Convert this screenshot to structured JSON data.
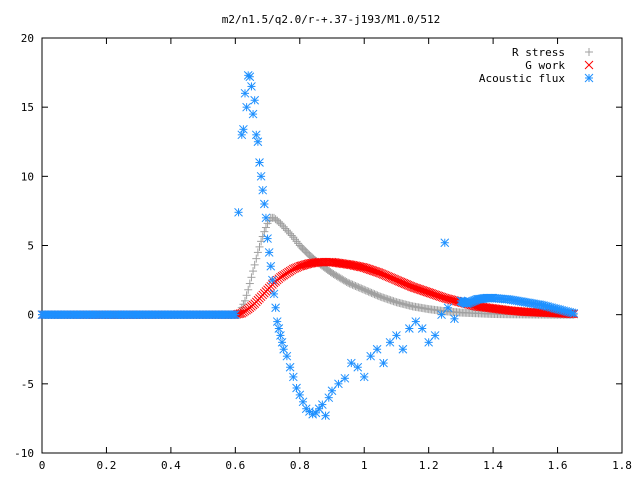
{
  "chart_data": {
    "type": "scatter",
    "title": "m2/n1.5/q2.0/r-+.37-j193/M1.0/512",
    "xlabel": "",
    "ylabel": "",
    "xlim": [
      0,
      1.8
    ],
    "ylim": [
      -10,
      20
    ],
    "x_ticks": [
      "0",
      "0.2",
      "0.4",
      "0.6",
      "0.8",
      "1",
      "1.2",
      "1.4",
      "1.6",
      "1.8"
    ],
    "y_ticks": [
      "-10",
      "-5",
      "0",
      "5",
      "10",
      "15",
      "20"
    ],
    "grid": false,
    "legend_position": "top-right",
    "series": [
      {
        "name": "R stress",
        "marker": "plus",
        "color": "#a0a0a0",
        "x": [
          0.0,
          0.1,
          0.2,
          0.3,
          0.4,
          0.5,
          0.6,
          0.61,
          0.62,
          0.63,
          0.64,
          0.65,
          0.66,
          0.67,
          0.68,
          0.69,
          0.7,
          0.71,
          0.72,
          0.73,
          0.74,
          0.76,
          0.78,
          0.8,
          0.83,
          0.86,
          0.9,
          0.95,
          1.0,
          1.05,
          1.1,
          1.15,
          1.2,
          1.25,
          1.3,
          1.35,
          1.4,
          1.45,
          1.5,
          1.55,
          1.6,
          1.65
        ],
        "y": [
          0,
          0,
          0,
          0,
          0,
          0,
          0,
          0.1,
          0.5,
          1.0,
          1.8,
          2.7,
          3.6,
          4.5,
          5.3,
          6.0,
          6.6,
          7.0,
          7.0,
          6.8,
          6.6,
          6.1,
          5.6,
          5.0,
          4.3,
          3.7,
          3.0,
          2.3,
          1.8,
          1.3,
          0.9,
          0.6,
          0.4,
          0.25,
          0.15,
          0.1,
          0.05,
          0.03,
          0.02,
          0.01,
          0.0,
          0.0
        ]
      },
      {
        "name": "G work",
        "marker": "cross",
        "color": "#ff0000",
        "x": [
          0.0,
          0.1,
          0.2,
          0.3,
          0.4,
          0.5,
          0.6,
          0.62,
          0.64,
          0.66,
          0.68,
          0.7,
          0.72,
          0.74,
          0.76,
          0.78,
          0.8,
          0.83,
          0.86,
          0.88,
          0.9,
          0.93,
          0.96,
          1.0,
          1.05,
          1.1,
          1.15,
          1.2,
          1.25,
          1.3,
          1.35,
          1.4,
          1.45,
          1.5,
          1.55,
          1.6,
          1.65
        ],
        "y": [
          0,
          0,
          0,
          0,
          0,
          0,
          0,
          0.1,
          0.4,
          0.8,
          1.3,
          1.8,
          2.3,
          2.7,
          3.0,
          3.3,
          3.5,
          3.7,
          3.8,
          3.8,
          3.8,
          3.7,
          3.6,
          3.4,
          3.0,
          2.5,
          2.0,
          1.6,
          1.2,
          0.9,
          0.6,
          0.45,
          0.3,
          0.2,
          0.15,
          0.1,
          0.05
        ]
      },
      {
        "name": "Acoustic flux",
        "marker": "star",
        "color": "#1e90ff",
        "x": [
          0.0,
          0.05,
          0.1,
          0.15,
          0.2,
          0.25,
          0.3,
          0.35,
          0.4,
          0.45,
          0.5,
          0.55,
          0.6,
          0.61,
          0.62,
          0.625,
          0.63,
          0.635,
          0.64,
          0.645,
          0.65,
          0.655,
          0.66,
          0.665,
          0.67,
          0.675,
          0.68,
          0.685,
          0.69,
          0.695,
          0.7,
          0.705,
          0.71,
          0.715,
          0.72,
          0.725,
          0.73,
          0.735,
          0.74,
          0.745,
          0.75,
          0.76,
          0.77,
          0.78,
          0.79,
          0.8,
          0.81,
          0.82,
          0.83,
          0.84,
          0.85,
          0.86,
          0.87,
          0.88,
          0.89,
          0.9,
          0.92,
          0.94,
          0.96,
          0.98,
          1.0,
          1.02,
          1.04,
          1.06,
          1.08,
          1.1,
          1.12,
          1.14,
          1.16,
          1.18,
          1.2,
          1.22,
          1.24,
          1.25,
          1.26,
          1.28,
          1.3,
          1.32,
          1.35,
          1.38,
          1.4,
          1.45,
          1.5,
          1.55,
          1.6,
          1.65
        ],
        "y": [
          0,
          0,
          0,
          0,
          0,
          0,
          0,
          0,
          0,
          0,
          0,
          0,
          0,
          7.4,
          13.0,
          13.4,
          16.0,
          15.0,
          17.3,
          17.2,
          16.5,
          14.5,
          15.5,
          13.0,
          12.5,
          11.0,
          10.0,
          9.0,
          8.0,
          7.0,
          5.5,
          4.5,
          3.5,
          2.5,
          1.5,
          0.5,
          -0.5,
          -1.0,
          -1.5,
          -2.0,
          -2.5,
          -3.0,
          -3.8,
          -4.5,
          -5.3,
          -5.8,
          -6.3,
          -6.8,
          -7.0,
          -7.2,
          -7.1,
          -6.8,
          -6.5,
          -7.3,
          -6.0,
          -5.5,
          -5.0,
          -4.6,
          -3.5,
          -3.8,
          -4.5,
          -3.0,
          -2.5,
          -3.5,
          -2.0,
          -1.5,
          -2.5,
          -1.0,
          -0.5,
          -1.0,
          -2.0,
          -1.5,
          0.0,
          5.2,
          0.5,
          -0.3,
          1.0,
          0.8,
          1.1,
          1.2,
          1.2,
          1.1,
          0.9,
          0.7,
          0.4,
          0.1
        ]
      }
    ]
  }
}
